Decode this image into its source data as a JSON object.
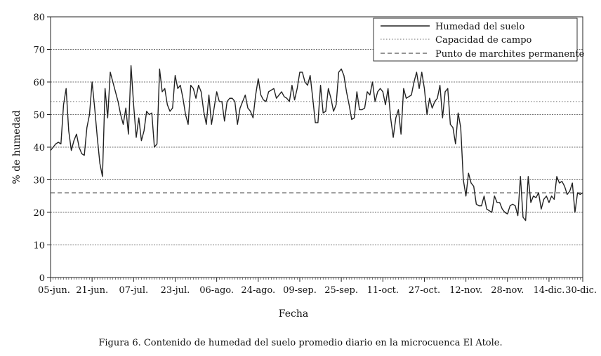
{
  "chart_data": {
    "type": "line",
    "xlabel": "Fecha",
    "ylabel": "% de humedad",
    "ylim": [
      0,
      80
    ],
    "yticks": [
      0,
      10,
      20,
      30,
      40,
      50,
      60,
      70,
      80
    ],
    "xtick_labels": [
      "05-jun.",
      "21-jun.",
      "07-jul.",
      "23-jul.",
      "06-ago.",
      "24-ago.",
      "09-sep.",
      "25-sep.",
      "11-oct.",
      "27-oct.",
      "12-nov.",
      "28-nov.",
      "14-dic.",
      "30-dic."
    ],
    "grid": "horizontal",
    "legend_position": "top-right",
    "series": [
      {
        "name": "Humedad del suelo",
        "style": "solid",
        "color": "#222222",
        "values": [
          39,
          40,
          41,
          41.5,
          41,
          53,
          58,
          45,
          39,
          42,
          44,
          40,
          38,
          37.5,
          46,
          50,
          60,
          52,
          43,
          35,
          31,
          58,
          49,
          63,
          60,
          57,
          54,
          50,
          47,
          52,
          44,
          65,
          53,
          43,
          49,
          42,
          45,
          51,
          50,
          50.5,
          40,
          41,
          64,
          57,
          58,
          53,
          51,
          52,
          62,
          58,
          59,
          55,
          50,
          47,
          59,
          58,
          55,
          59,
          57,
          51,
          47,
          56,
          47,
          52,
          57,
          54,
          54,
          48,
          54,
          55,
          55,
          54,
          47,
          52,
          54,
          56,
          52,
          51,
          49,
          56,
          61,
          56,
          54.5,
          54,
          57,
          57.5,
          58,
          55,
          56,
          57,
          55.5,
          55,
          54,
          59,
          54.5,
          58,
          63,
          63,
          60,
          59,
          62,
          55,
          47.5,
          47.5,
          59,
          50.5,
          51,
          58,
          55,
          51,
          53,
          63,
          64,
          62,
          57,
          53,
          48.5,
          49,
          57,
          51.5,
          51.5,
          52,
          57,
          56,
          60,
          54,
          57,
          58,
          57,
          53,
          58,
          49,
          43,
          49,
          51.5,
          44,
          58,
          55,
          55.5,
          56,
          60,
          63,
          58,
          63,
          58,
          50,
          55,
          52,
          54,
          55,
          59,
          49,
          57,
          58,
          47,
          46,
          41,
          50.5,
          46,
          30,
          25,
          32,
          29,
          28,
          22.5,
          22,
          22,
          25,
          21,
          20.5,
          20,
          25,
          23,
          23,
          21,
          20,
          19.5,
          22,
          22.5,
          22,
          19,
          31,
          18.5,
          17.5,
          31,
          23,
          25,
          24.5,
          26,
          21,
          24,
          25,
          23,
          25,
          24,
          31,
          29,
          29.5,
          28,
          25.5,
          26.5,
          29,
          20,
          26,
          25.5,
          26
        ]
      },
      {
        "name": "Capacidad de campo",
        "style": "dotted",
        "color": "#888888",
        "values": [
          54
        ]
      },
      {
        "name": "Punto de marchites permanente",
        "style": "dashed",
        "color": "#555555",
        "values": [
          26
        ]
      }
    ]
  },
  "caption": "Figura 6. Contenido de humedad del suelo promedio diario en la microcuenca El Atole."
}
